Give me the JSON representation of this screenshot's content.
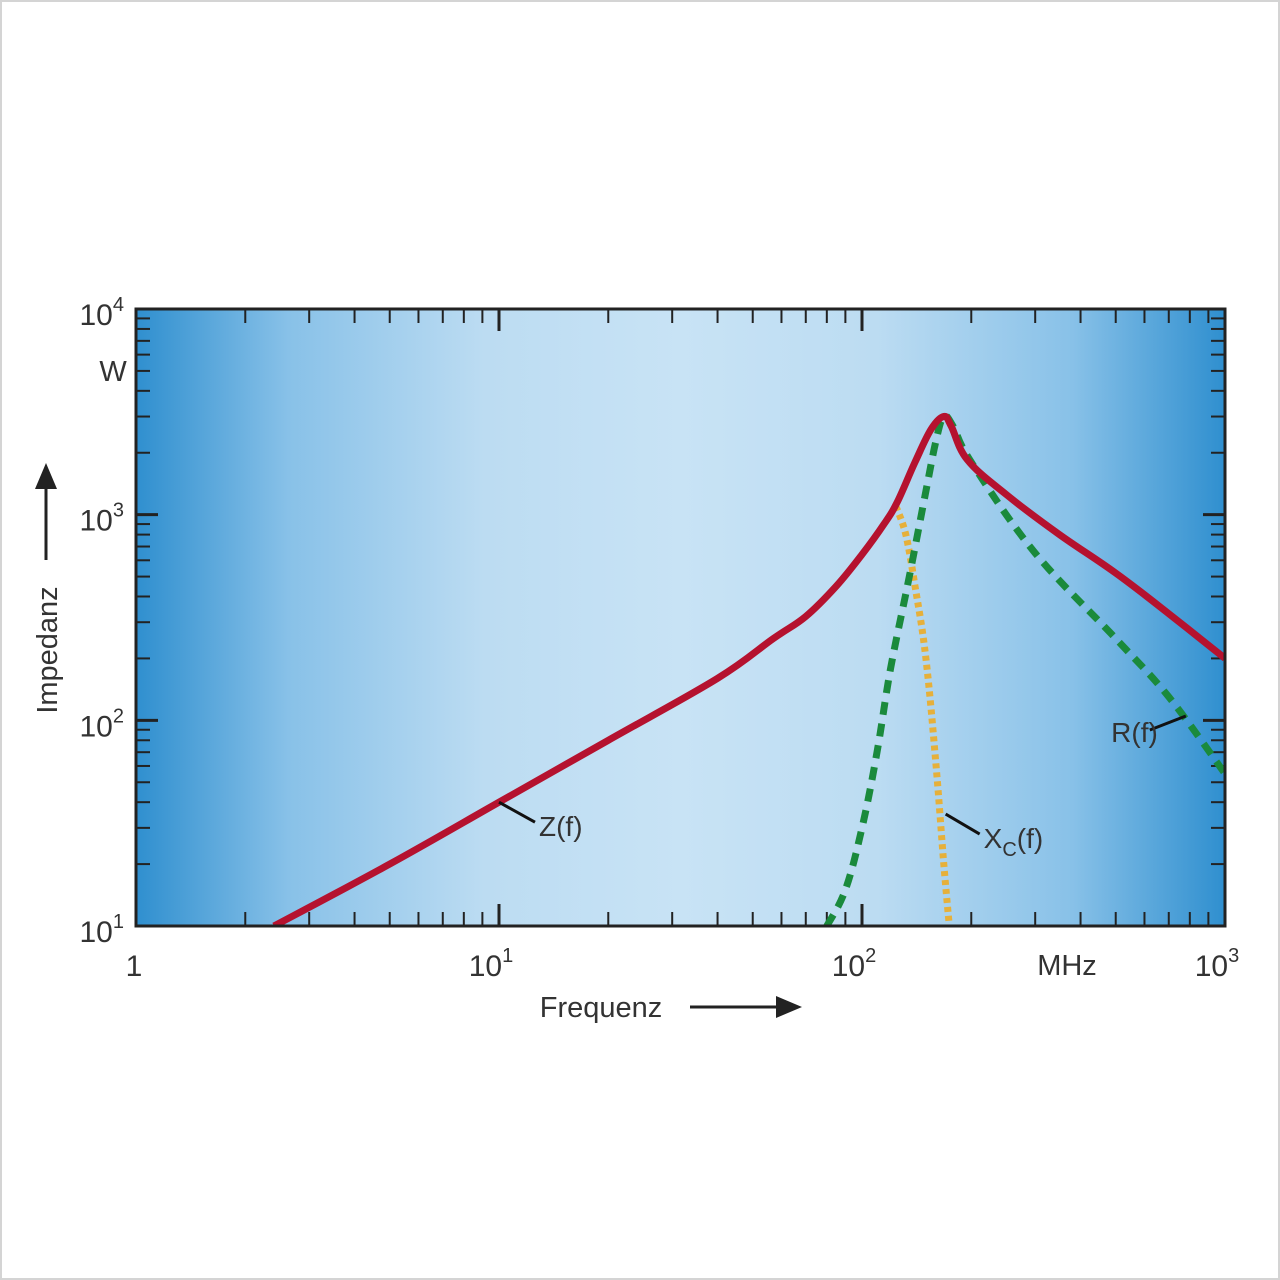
{
  "chart_data": {
    "type": "line",
    "x_scale": "log",
    "y_scale": "log",
    "xlim": [
      1,
      1000
    ],
    "ylim": [
      10,
      10000
    ],
    "xlabel": "Frequenz",
    "ylabel": "Impedanz",
    "x_unit": "MHz",
    "y_unit": "W",
    "grid": false,
    "legend": "none",
    "x_ticks": [
      {
        "value": 1,
        "base": "1",
        "exp": ""
      },
      {
        "value": 10,
        "base": "10",
        "exp": "1"
      },
      {
        "value": 100,
        "base": "10",
        "exp": "2"
      },
      {
        "value": 1000,
        "base": "10",
        "exp": "3"
      }
    ],
    "y_ticks": [
      {
        "value": 10,
        "base": "10",
        "exp": "1"
      },
      {
        "value": 100,
        "base": "10",
        "exp": "2"
      },
      {
        "value": 1000,
        "base": "10",
        "exp": "3"
      },
      {
        "value": 10000,
        "base": "10",
        "exp": "4"
      }
    ],
    "colors": {
      "Z": "#b5122f",
      "R": "#1a8a3c",
      "Xc": "#e6b03a",
      "axis": "#222222",
      "plot_center": "#c8e3f5",
      "plot_edge": "#2f8fcf"
    },
    "series": [
      {
        "name": "Z(f)",
        "label_main": "Z(f)",
        "label_sub": "",
        "style": "solid",
        "points": [
          [
            2.4,
            10
          ],
          [
            5,
            20
          ],
          [
            10,
            40
          ],
          [
            20,
            80
          ],
          [
            40,
            160
          ],
          [
            57,
            250
          ],
          [
            70,
            320
          ],
          [
            85,
            450
          ],
          [
            100,
            640
          ],
          [
            115,
            900
          ],
          [
            125,
            1150
          ],
          [
            140,
            1800
          ],
          [
            155,
            2600
          ],
          [
            168,
            3000
          ],
          [
            176,
            2700
          ],
          [
            195,
            1850
          ],
          [
            250,
            1250
          ],
          [
            350,
            800
          ],
          [
            500,
            520
          ],
          [
            700,
            330
          ],
          [
            1000,
            200
          ]
        ]
      },
      {
        "name": "R(f)",
        "label_main": "R(f)",
        "label_sub": "",
        "style": "dashed",
        "points": [
          [
            80,
            10
          ],
          [
            90,
            15
          ],
          [
            100,
            30
          ],
          [
            110,
            70
          ],
          [
            120,
            180
          ],
          [
            135,
            500
          ],
          [
            150,
            1300
          ],
          [
            160,
            2300
          ],
          [
            168,
            3000
          ],
          [
            178,
            2700
          ],
          [
            200,
            1800
          ],
          [
            300,
            650
          ],
          [
            500,
            250
          ],
          [
            700,
            130
          ],
          [
            1000,
            55
          ]
        ]
      },
      {
        "name": "Xc(f)",
        "label_main": "X",
        "label_sub": "C",
        "label_tail": "(f)",
        "style": "dotted",
        "points": [
          [
            124,
            1100
          ],
          [
            132,
            800
          ],
          [
            140,
            450
          ],
          [
            150,
            200
          ],
          [
            160,
            60
          ],
          [
            168,
            20
          ],
          [
            174,
            10
          ]
        ]
      }
    ],
    "annotations": [
      {
        "series": "Z(f)",
        "at": [
          10,
          40
        ]
      },
      {
        "series": "R(f)",
        "at": [
          780,
          105
        ]
      },
      {
        "series": "Xc(f)",
        "at": [
          170,
          35
        ]
      }
    ]
  }
}
